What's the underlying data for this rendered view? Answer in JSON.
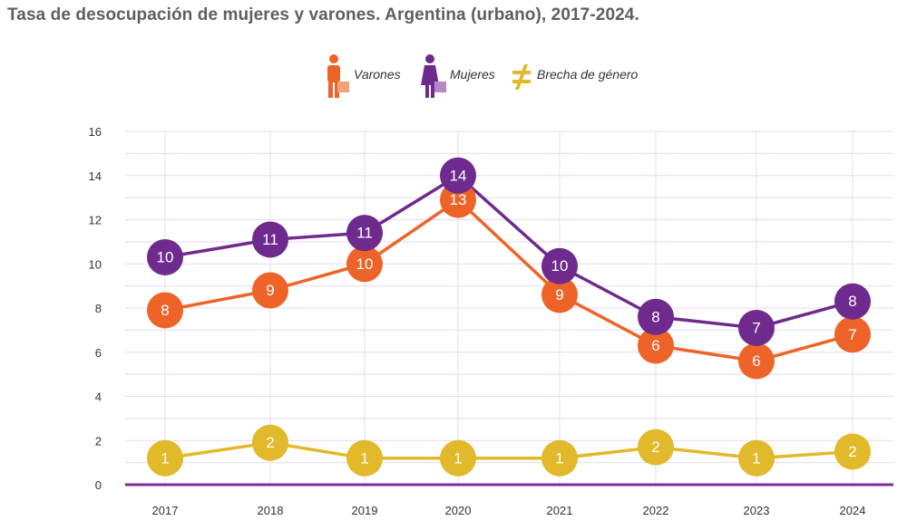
{
  "title": "Tasa de desocupación de mujeres y varones. Argentina (urbano), 2017-2024.",
  "legend": {
    "varones": "Varones",
    "mujeres": "Mujeres",
    "brecha": "Brecha de género"
  },
  "colors": {
    "varones": "#ee6428",
    "mujeres": "#6e2a8c",
    "brecha": "#e2b92a",
    "grid": "#e8d9ef",
    "baseline": "#7b2e95"
  },
  "chart_data": {
    "type": "line",
    "title": "Tasa de desocupación de mujeres y varones. Argentina (urbano), 2017-2024.",
    "categories": [
      "2017",
      "2018",
      "2019",
      "2020",
      "2021",
      "2022",
      "2023",
      "2024"
    ],
    "ylim": [
      0,
      16
    ],
    "yticks": [
      "0",
      "2",
      "4",
      "6",
      "8",
      "10",
      "12",
      "14",
      "16"
    ],
    "grid": true,
    "legend_position": "top-center",
    "series": [
      {
        "key": "mujeres",
        "name": "Mujeres",
        "values": [
          10.3,
          11.1,
          11.4,
          14.0,
          9.9,
          7.6,
          7.1,
          8.3
        ],
        "labels": [
          "10",
          "11",
          "11",
          "14",
          "10",
          "8",
          "7",
          "8"
        ]
      },
      {
        "key": "varones",
        "name": "Varones",
        "values": [
          7.9,
          8.8,
          10.0,
          12.9,
          8.6,
          6.3,
          5.6,
          6.8
        ],
        "labels": [
          "8",
          "9",
          "10",
          "13",
          "9",
          "6",
          "6",
          "7"
        ]
      },
      {
        "key": "brecha",
        "name": "Brecha de género",
        "values": [
          1.2,
          1.9,
          1.2,
          1.2,
          1.2,
          1.7,
          1.2,
          1.5
        ],
        "labels": [
          "1",
          "2",
          "1",
          "1",
          "1",
          "2",
          "1",
          "2"
        ]
      }
    ]
  }
}
